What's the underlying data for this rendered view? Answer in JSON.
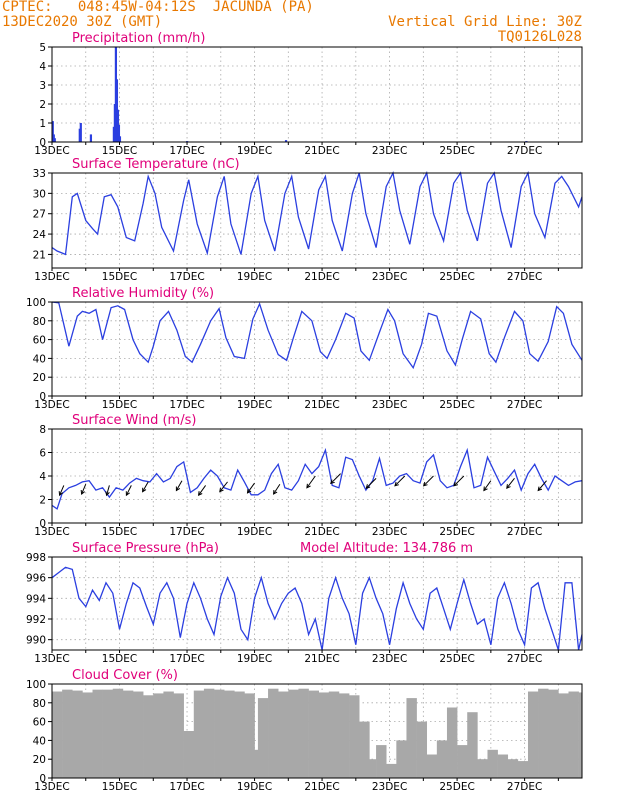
{
  "header": {
    "left_line1": "CPTEC:   048:45W-04:12S  JACUNDA (PA)",
    "left_line2": "13DEC2020 30Z (GMT)",
    "right_line1": "Vertical Grid Line: 30Z",
    "right_line2": "TQ0126L028",
    "color": "#e87800"
  },
  "colors": {
    "title": "#e0007a",
    "series": "#2b3fe0",
    "cloud": "#a8a8a8",
    "arrow": "#000000",
    "grid": "#aaaaaa"
  },
  "x_axis": {
    "ticks": [
      "13DEC",
      "15DEC",
      "17DEC",
      "19DEC",
      "21DEC",
      "23DEC",
      "25DEC",
      "27DEC"
    ],
    "start_day": 13,
    "end_day": 28.7
  },
  "chart_data": [
    {
      "type": "bar",
      "id": "precip",
      "title": "Precipitation (mm/h)",
      "ylim": [
        0,
        5
      ],
      "yticks": [
        0,
        1,
        2,
        3,
        4,
        5
      ],
      "x": [
        13.02,
        13.05,
        13.08,
        13.82,
        13.85,
        14.15,
        14.83,
        14.86,
        14.89,
        14.92,
        14.95,
        14.98,
        15.01,
        17.0,
        19.93,
        27.05
      ],
      "values": [
        1.1,
        0.4,
        0.2,
        0.7,
        1.0,
        0.4,
        0.8,
        2.0,
        5.0,
        3.3,
        1.7,
        0.9,
        0.3,
        0.05,
        0.1,
        0.05
      ]
    },
    {
      "type": "line",
      "id": "temp",
      "title": "Surface Temperature (nC)",
      "ylim": [
        19,
        33
      ],
      "yticks": [
        21,
        24,
        27,
        30,
        33
      ],
      "x": [
        13.0,
        13.15,
        13.4,
        13.6,
        13.75,
        14.0,
        14.2,
        14.35,
        14.55,
        14.75,
        14.95,
        15.2,
        15.45,
        15.7,
        15.85,
        16.05,
        16.25,
        16.6,
        16.9,
        17.05,
        17.3,
        17.6,
        17.9,
        18.1,
        18.3,
        18.6,
        18.9,
        19.1,
        19.3,
        19.6,
        19.9,
        20.1,
        20.3,
        20.6,
        20.9,
        21.1,
        21.3,
        21.6,
        21.9,
        22.1,
        22.3,
        22.6,
        22.9,
        23.1,
        23.3,
        23.6,
        23.9,
        24.1,
        24.3,
        24.6,
        24.9,
        25.1,
        25.3,
        25.6,
        25.9,
        26.1,
        26.3,
        26.6,
        26.9,
        27.1,
        27.3,
        27.6,
        27.9,
        28.1,
        28.3,
        28.6,
        28.7
      ],
      "values": [
        22.0,
        21.5,
        21.0,
        29.5,
        30.0,
        26.0,
        24.8,
        24.0,
        29.5,
        29.8,
        28.0,
        23.5,
        23.0,
        28.5,
        32.5,
        30.0,
        25.0,
        21.5,
        29.0,
        32.0,
        25.5,
        21.2,
        29.5,
        32.5,
        25.5,
        21.0,
        30.0,
        32.5,
        26.0,
        21.5,
        30.0,
        32.5,
        26.5,
        21.8,
        30.5,
        32.5,
        26.0,
        21.5,
        30.0,
        33.0,
        27.0,
        22.0,
        31.0,
        33.0,
        27.5,
        22.5,
        31.0,
        33.0,
        27.0,
        23.0,
        31.5,
        33.0,
        27.5,
        23.0,
        31.5,
        33.0,
        27.5,
        22.0,
        31.0,
        33.0,
        27.0,
        23.5,
        31.5,
        32.5,
        31.0,
        28.0,
        29.5
      ]
    },
    {
      "type": "line",
      "id": "rh",
      "title": "Relative Humidity (%)",
      "ylim": [
        0,
        100
      ],
      "yticks": [
        0,
        20,
        40,
        60,
        80,
        100
      ],
      "x": [
        13.0,
        13.2,
        13.5,
        13.75,
        13.9,
        14.1,
        14.3,
        14.5,
        14.75,
        14.95,
        15.15,
        15.4,
        15.6,
        15.85,
        16.0,
        16.2,
        16.45,
        16.7,
        16.95,
        17.15,
        17.4,
        17.7,
        17.95,
        18.15,
        18.4,
        18.7,
        18.95,
        19.15,
        19.4,
        19.7,
        19.95,
        20.15,
        20.4,
        20.7,
        20.95,
        21.15,
        21.4,
        21.7,
        21.95,
        22.15,
        22.4,
        22.7,
        22.95,
        23.15,
        23.4,
        23.7,
        23.95,
        24.15,
        24.4,
        24.7,
        24.95,
        25.15,
        25.4,
        25.7,
        25.95,
        26.15,
        26.4,
        26.7,
        26.95,
        27.15,
        27.4,
        27.7,
        27.95,
        28.15,
        28.4,
        28.7
      ],
      "values": [
        100,
        99,
        53,
        85,
        90,
        88,
        92,
        60,
        94,
        96,
        92,
        60,
        45,
        36,
        53,
        80,
        90,
        70,
        42,
        36,
        55,
        80,
        93,
        62,
        42,
        40,
        82,
        98,
        70,
        44,
        38,
        62,
        90,
        80,
        47,
        40,
        60,
        88,
        83,
        48,
        38,
        68,
        92,
        80,
        45,
        30,
        55,
        88,
        85,
        48,
        33,
        60,
        90,
        82,
        45,
        36,
        62,
        90,
        80,
        45,
        37,
        58,
        95,
        88,
        55,
        38
      ]
    },
    {
      "type": "line",
      "id": "wind",
      "title": "Surface Wind (m/s)",
      "ylim": [
        0,
        8
      ],
      "yticks": [
        0,
        2,
        4,
        6,
        8
      ],
      "x": [
        13.0,
        13.15,
        13.3,
        13.5,
        13.7,
        13.9,
        14.1,
        14.3,
        14.5,
        14.7,
        14.9,
        15.1,
        15.3,
        15.5,
        15.7,
        15.9,
        16.1,
        16.3,
        16.5,
        16.7,
        16.9,
        17.1,
        17.3,
        17.5,
        17.7,
        17.9,
        18.1,
        18.3,
        18.5,
        18.7,
        18.9,
        19.1,
        19.3,
        19.5,
        19.7,
        19.9,
        20.1,
        20.3,
        20.5,
        20.7,
        20.9,
        21.1,
        21.3,
        21.5,
        21.7,
        21.9,
        22.1,
        22.3,
        22.5,
        22.7,
        22.9,
        23.1,
        23.3,
        23.5,
        23.7,
        23.9,
        24.1,
        24.3,
        24.5,
        24.7,
        24.9,
        25.1,
        25.3,
        25.5,
        25.7,
        25.9,
        26.1,
        26.3,
        26.5,
        26.7,
        26.9,
        27.1,
        27.3,
        27.5,
        27.7,
        27.9,
        28.1,
        28.3,
        28.5,
        28.7
      ],
      "values": [
        1.5,
        1.2,
        2.5,
        3.0,
        3.2,
        3.5,
        3.6,
        2.8,
        3.0,
        2.2,
        3.0,
        2.8,
        3.4,
        3.8,
        3.6,
        3.5,
        4.2,
        3.5,
        3.8,
        4.8,
        5.2,
        2.6,
        3.0,
        3.8,
        4.5,
        4.0,
        3.0,
        2.8,
        4.5,
        3.5,
        2.4,
        2.4,
        2.8,
        4.2,
        5.0,
        3.0,
        2.8,
        3.6,
        5.0,
        4.2,
        4.8,
        6.2,
        3.2,
        3.0,
        5.6,
        5.4,
        4.0,
        2.8,
        3.6,
        5.5,
        3.2,
        3.4,
        4.0,
        4.2,
        3.6,
        3.4,
        5.2,
        5.8,
        3.6,
        3.0,
        3.2,
        4.8,
        6.2,
        3.0,
        3.2,
        5.6,
        4.4,
        3.2,
        3.8,
        4.5,
        2.8,
        4.2,
        5.0,
        3.8,
        2.8,
        4.0,
        3.6,
        3.2,
        3.5,
        3.6
      ],
      "barbs": [
        {
          "x": 13.35,
          "y": 3.2,
          "dx": -0.3,
          "dy": -1.0
        },
        {
          "x": 14.0,
          "y": 3.3,
          "dx": -0.3,
          "dy": -1.0
        },
        {
          "x": 14.7,
          "y": 3.2,
          "dx": -0.2,
          "dy": -1.0
        },
        {
          "x": 15.35,
          "y": 3.2,
          "dx": -0.35,
          "dy": -1.0
        },
        {
          "x": 15.85,
          "y": 3.5,
          "dx": -0.4,
          "dy": -1.0
        },
        {
          "x": 16.85,
          "y": 3.6,
          "dx": -0.4,
          "dy": -1.0
        },
        {
          "x": 17.55,
          "y": 3.2,
          "dx": -0.5,
          "dy": -1.0
        },
        {
          "x": 18.2,
          "y": 3.5,
          "dx": -0.55,
          "dy": -1.0
        },
        {
          "x": 19.0,
          "y": 3.4,
          "dx": -0.5,
          "dy": -1.0
        },
        {
          "x": 19.75,
          "y": 3.3,
          "dx": -0.45,
          "dy": -1.0
        },
        {
          "x": 20.8,
          "y": 4.0,
          "dx": -0.6,
          "dy": -1.2
        },
        {
          "x": 21.55,
          "y": 4.2,
          "dx": -0.7,
          "dy": -1.0
        },
        {
          "x": 22.6,
          "y": 3.8,
          "dx": -0.7,
          "dy": -1.0
        },
        {
          "x": 23.45,
          "y": 4.0,
          "dx": -0.7,
          "dy": -1.0
        },
        {
          "x": 24.3,
          "y": 4.0,
          "dx": -0.7,
          "dy": -1.0
        },
        {
          "x": 25.2,
          "y": 4.0,
          "dx": -0.7,
          "dy": -1.0
        },
        {
          "x": 26.0,
          "y": 3.6,
          "dx": -0.5,
          "dy": -1.0
        },
        {
          "x": 26.7,
          "y": 3.8,
          "dx": -0.55,
          "dy": -1.0
        },
        {
          "x": 27.65,
          "y": 3.6,
          "dx": -0.6,
          "dy": -1.0
        }
      ]
    },
    {
      "type": "line",
      "id": "pres",
      "title": "Surface Pressure (hPa)",
      "annotation": "Model Altitude: 134.786  m",
      "ylim": [
        989,
        998
      ],
      "yticks": [
        990,
        992,
        994,
        996,
        998
      ],
      "x": [
        13.0,
        13.2,
        13.4,
        13.6,
        13.8,
        14.0,
        14.2,
        14.4,
        14.6,
        14.8,
        15.0,
        15.2,
        15.4,
        15.6,
        15.8,
        16.0,
        16.2,
        16.4,
        16.6,
        16.8,
        17.0,
        17.2,
        17.4,
        17.6,
        17.8,
        18.0,
        18.2,
        18.4,
        18.6,
        18.8,
        19.0,
        19.2,
        19.4,
        19.6,
        19.8,
        20.0,
        20.2,
        20.4,
        20.6,
        20.8,
        21.0,
        21.2,
        21.4,
        21.6,
        21.8,
        22.0,
        22.2,
        22.4,
        22.6,
        22.8,
        23.0,
        23.2,
        23.4,
        23.6,
        23.8,
        24.0,
        24.2,
        24.4,
        24.6,
        24.8,
        25.0,
        25.2,
        25.4,
        25.6,
        25.8,
        26.0,
        26.2,
        26.4,
        26.6,
        26.8,
        27.0,
        27.2,
        27.4,
        27.6,
        27.8,
        28.0,
        28.2,
        28.4,
        28.6,
        28.7
      ],
      "values": [
        996,
        996.5,
        997,
        996.8,
        994.0,
        993.2,
        994.8,
        993.8,
        995.5,
        994.5,
        991.0,
        993.5,
        995.5,
        995.0,
        993.2,
        991.5,
        994.5,
        995.5,
        994.0,
        990.2,
        993.5,
        995.5,
        994.0,
        992.0,
        990.5,
        994.2,
        996.0,
        994.5,
        991.0,
        990.0,
        994.0,
        996.0,
        993.5,
        992.0,
        993.5,
        994.5,
        995.0,
        993.5,
        990.5,
        992.0,
        989.0,
        994.0,
        996.0,
        994.0,
        992.5,
        989.5,
        994.5,
        996.0,
        994.0,
        992.5,
        989.5,
        993.0,
        995.5,
        993.5,
        992.0,
        991.0,
        994.5,
        995.0,
        993.0,
        991.0,
        993.5,
        995.8,
        993.5,
        991.5,
        992.0,
        989.5,
        994.0,
        995.5,
        993.5,
        991.0,
        989.5,
        995.0,
        995.5,
        993.0,
        991.0,
        989.0,
        995.5,
        995.5,
        989.0,
        990.5
      ]
    },
    {
      "type": "bar",
      "id": "cloud",
      "title": "Cloud Cover (%)",
      "ylim": [
        0,
        100
      ],
      "yticks": [
        0,
        20,
        40,
        60,
        80,
        100
      ],
      "x": [
        13.0,
        13.3,
        13.6,
        13.9,
        14.2,
        14.5,
        14.8,
        15.1,
        15.4,
        15.7,
        16.0,
        16.3,
        16.6,
        16.9,
        17.0,
        17.2,
        17.5,
        17.8,
        18.1,
        18.4,
        18.7,
        18.9,
        19.1,
        19.4,
        19.7,
        20.0,
        20.3,
        20.6,
        20.9,
        21.2,
        21.5,
        21.8,
        22.1,
        22.3,
        22.6,
        22.9,
        23.2,
        23.5,
        23.8,
        24.1,
        24.4,
        24.7,
        25.0,
        25.3,
        25.6,
        25.9,
        26.2,
        26.5,
        26.8,
        27.1,
        27.4,
        27.7,
        28.0,
        28.3,
        28.6
      ],
      "values": [
        92,
        94,
        93,
        91,
        94,
        94,
        95,
        93,
        92,
        88,
        90,
        92,
        90,
        50,
        30,
        93,
        95,
        94,
        93,
        92,
        90,
        30,
        85,
        95,
        92,
        94,
        95,
        93,
        91,
        92,
        90,
        88,
        60,
        20,
        35,
        15,
        40,
        85,
        60,
        25,
        40,
        75,
        35,
        70,
        20,
        30,
        25,
        20,
        18,
        92,
        95,
        94,
        90,
        92,
        91
      ]
    }
  ]
}
